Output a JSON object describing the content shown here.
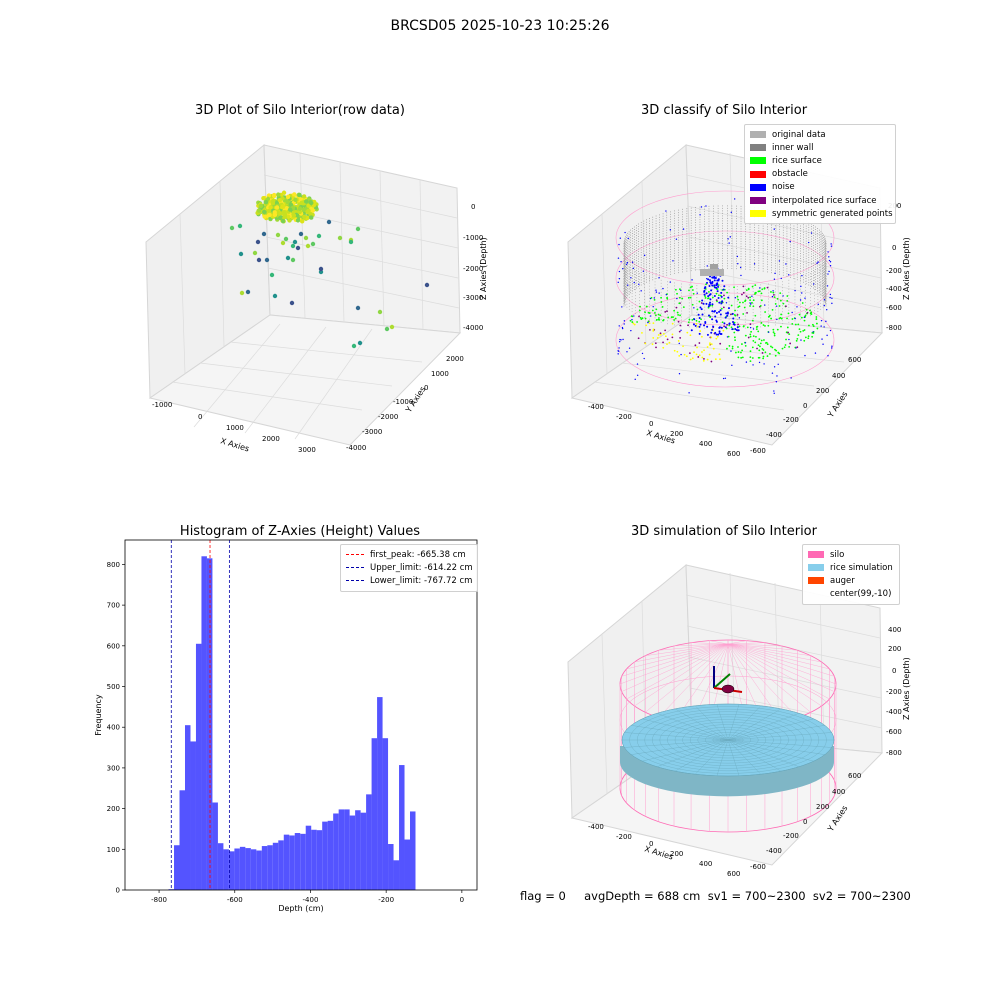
{
  "figure": {
    "suptitle": "BRCSD05 2025-10-23 10:25:26",
    "footer": "flag = 0     avgDepth = 688 cm  sv1 = 700~2300  sv2 = 700~2300"
  },
  "colors": {
    "histogram_bar": "#4b4bff",
    "first_peak_line": "#ff0000",
    "limit_lines": "#0000aa",
    "silo_wireframe": "#ff69b4",
    "rice_simulation": "#87ceeb",
    "auger": "#ff4500"
  },
  "chart_data": [
    {
      "type": "scatter",
      "subtype": "3d",
      "title": "3D Plot of Silo Interior(row data)",
      "xlabel": "X Axies",
      "ylabel": "Y Axies",
      "zlabel": "Z Axies (Depth)",
      "xticks": [
        "-1000",
        "0",
        "1000",
        "2000",
        "3000"
      ],
      "yticks": [
        "2000",
        "1000",
        "0",
        "-1000",
        "-2000",
        "-3000",
        "-4000"
      ],
      "zticks": [
        "0",
        "-1000",
        "-2000",
        "-3000",
        "-4000"
      ],
      "grid": true,
      "colormap": "viridis"
    },
    {
      "type": "scatter",
      "subtype": "3d",
      "title": "3D classify of Silo Interior",
      "xlabel": "X Axies",
      "ylabel": "Y Axies",
      "zlabel": "Z Axies (Depth)",
      "xticks": [
        "-400",
        "-200",
        "0",
        "200",
        "400",
        "600"
      ],
      "yticks": [
        "600",
        "400",
        "200",
        "0",
        "-200",
        "-400",
        "-600"
      ],
      "zticks": [
        "200",
        "0",
        "-200",
        "-400",
        "-600",
        "-800"
      ],
      "grid": true,
      "legend_position": "top-right",
      "legend": [
        {
          "label": "original data",
          "color": "#b0b0b0"
        },
        {
          "label": "inner wall",
          "color": "#808080"
        },
        {
          "label": "rice surface",
          "color": "#00ff00"
        },
        {
          "label": "obstacle",
          "color": "#ff0000"
        },
        {
          "label": "noise",
          "color": "#0000ff"
        },
        {
          "label": "interpolated rice surface",
          "color": "#800080"
        },
        {
          "label": "symmetric generated points",
          "color": "#ffff00"
        }
      ]
    },
    {
      "type": "bar",
      "subtype": "histogram",
      "title": "Histogram of Z-Axies (Height) Values",
      "xlabel": "Depth (cm)",
      "ylabel": "Frequency",
      "xlim": [
        -890,
        40
      ],
      "ylim": [
        0,
        860
      ],
      "xticks": [
        "-800",
        "-600",
        "-400",
        "-200",
        "0"
      ],
      "xtick_values": [
        -800,
        -600,
        -400,
        -200,
        0
      ],
      "yticks": [
        "0",
        "100",
        "200",
        "300",
        "400",
        "500",
        "600",
        "700",
        "800"
      ],
      "ytick_values": [
        0,
        100,
        200,
        300,
        400,
        500,
        600,
        700,
        800
      ],
      "bin_start": -775,
      "bin_width": 14.5,
      "values": [
        2,
        110,
        245,
        405,
        365,
        605,
        820,
        815,
        215,
        115,
        100,
        95,
        102,
        106,
        103,
        100,
        97,
        108,
        110,
        116,
        122,
        136,
        134,
        140,
        138,
        158,
        148,
        147,
        168,
        170,
        188,
        198,
        198,
        183,
        196,
        190,
        235,
        373,
        474,
        373,
        113,
        73,
        307,
        124,
        193
      ],
      "vlines": [
        {
          "label": "first_peak: -665.38 cm",
          "x": -665.38,
          "color": "#ff0000"
        },
        {
          "label": "Upper_limit: -614.22 cm",
          "x": -614.22,
          "color": "#0000aa"
        },
        {
          "label": "Lower_limit: -767.72 cm",
          "x": -767.72,
          "color": "#0000aa"
        }
      ],
      "legend_position": "top-right",
      "grid": false
    },
    {
      "type": "scatter",
      "subtype": "3d-surface",
      "title": "3D simulation of Silo Interior",
      "xlabel": "X Axies",
      "ylabel": "Y Axies",
      "zlabel": "Z Axies (Depth)",
      "xticks": [
        "-400",
        "-200",
        "0",
        "200",
        "400",
        "600"
      ],
      "yticks": [
        "600",
        "400",
        "200",
        "0",
        "-200",
        "-400",
        "-600"
      ],
      "zticks": [
        "400",
        "200",
        "0",
        "-200",
        "-400",
        "-600",
        "-800"
      ],
      "grid": true,
      "legend_position": "top-right",
      "legend": [
        {
          "label": "silo",
          "color": "#ff69b4"
        },
        {
          "label": "rice simulation",
          "color": "#87ceeb"
        },
        {
          "label": "auger",
          "color": "#ff4500"
        },
        {
          "label": "center(99,-10)",
          "color": ""
        }
      ]
    }
  ]
}
